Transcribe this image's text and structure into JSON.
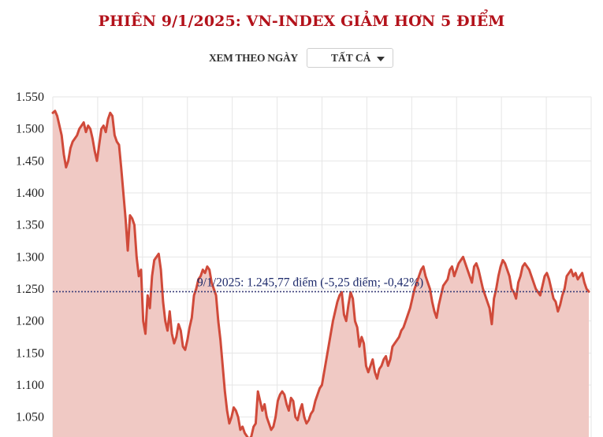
{
  "header": {
    "title": "PHIÊN 9/1/2025: VN-INDEX GIẢM HƠN 5 ĐIỂM"
  },
  "filter": {
    "label": "XEM THEO NGÀY",
    "selected": "TẤT CẢ"
  },
  "colors": {
    "title": "#b3121b",
    "line": "#d04a3a",
    "area": "#f0c9c4",
    "reference_line": "#3c3f7a",
    "annotation_text": "#1d2a6b",
    "grid": "#e6e6e6"
  },
  "chart_data": {
    "type": "area",
    "title": "PHIÊN 9/1/2025: VN-INDEX GIẢM HƠN 5 ĐIỂM",
    "xlabel": "",
    "ylabel": "",
    "ylim": [
      1010,
      1560
    ],
    "yticks": [
      1050,
      1100,
      1150,
      1200,
      1250,
      1300,
      1350,
      1400,
      1450,
      1500,
      1550
    ],
    "ytick_labels": [
      "1.050",
      "1.100",
      "1.150",
      "1.200",
      "1.250",
      "1.300",
      "1.350",
      "1.400",
      "1.450",
      "1.500",
      "1.550"
    ],
    "grid": true,
    "vertical_gridlines": 12,
    "series": [
      {
        "name": "VN-Index",
        "values": [
          1525,
          1528,
          1520,
          1505,
          1490,
          1460,
          1440,
          1450,
          1470,
          1480,
          1485,
          1490,
          1500,
          1505,
          1510,
          1495,
          1505,
          1500,
          1485,
          1465,
          1450,
          1475,
          1500,
          1505,
          1495,
          1515,
          1525,
          1520,
          1490,
          1480,
          1475,
          1440,
          1400,
          1360,
          1310,
          1365,
          1360,
          1350,
          1300,
          1270,
          1280,
          1200,
          1180,
          1240,
          1220,
          1270,
          1295,
          1300,
          1305,
          1280,
          1230,
          1200,
          1185,
          1215,
          1180,
          1165,
          1175,
          1195,
          1185,
          1160,
          1155,
          1170,
          1190,
          1205,
          1240,
          1250,
          1265,
          1270,
          1280,
          1275,
          1285,
          1280,
          1260,
          1250,
          1240,
          1200,
          1170,
          1130,
          1090,
          1060,
          1040,
          1050,
          1065,
          1060,
          1050,
          1030,
          1035,
          1025,
          1020,
          1015,
          1020,
          1035,
          1040,
          1090,
          1075,
          1060,
          1070,
          1050,
          1040,
          1030,
          1035,
          1050,
          1075,
          1085,
          1090,
          1085,
          1070,
          1060,
          1080,
          1075,
          1050,
          1045,
          1060,
          1070,
          1050,
          1040,
          1045,
          1055,
          1060,
          1075,
          1085,
          1095,
          1100,
          1120,
          1140,
          1160,
          1180,
          1200,
          1215,
          1230,
          1240,
          1245,
          1210,
          1200,
          1225,
          1245,
          1235,
          1200,
          1190,
          1160,
          1175,
          1165,
          1130,
          1120,
          1130,
          1140,
          1120,
          1110,
          1125,
          1130,
          1140,
          1145,
          1130,
          1140,
          1160,
          1165,
          1170,
          1175,
          1185,
          1190,
          1200,
          1210,
          1220,
          1235,
          1250,
          1260,
          1270,
          1280,
          1285,
          1270,
          1260,
          1250,
          1230,
          1215,
          1205,
          1225,
          1240,
          1255,
          1260,
          1265,
          1280,
          1285,
          1270,
          1280,
          1290,
          1295,
          1300,
          1290,
          1280,
          1270,
          1260,
          1285,
          1290,
          1280,
          1265,
          1250,
          1240,
          1230,
          1220,
          1195,
          1235,
          1250,
          1270,
          1285,
          1295,
          1290,
          1280,
          1270,
          1250,
          1245,
          1235,
          1260,
          1270,
          1285,
          1290,
          1285,
          1280,
          1270,
          1260,
          1250,
          1245,
          1240,
          1255,
          1270,
          1275,
          1265,
          1250,
          1235,
          1230,
          1215,
          1225,
          1240,
          1250,
          1270,
          1275,
          1280,
          1270,
          1275,
          1265,
          1270,
          1275,
          1260,
          1250,
          1246
        ]
      }
    ],
    "reference_line": {
      "value": 1245.77,
      "style": "dotted",
      "label": "9/1/2025: 1.245,77 điểm (-5,25 điểm; -0,42%)"
    },
    "annotations": [
      {
        "text": "9/1/2025: 1.245,77 điểm (-5,25 điểm; -0,42%)",
        "date": "9/1/2025",
        "close": 1245.77,
        "change_points": -5.25,
        "change_pct": -0.42
      }
    ]
  }
}
